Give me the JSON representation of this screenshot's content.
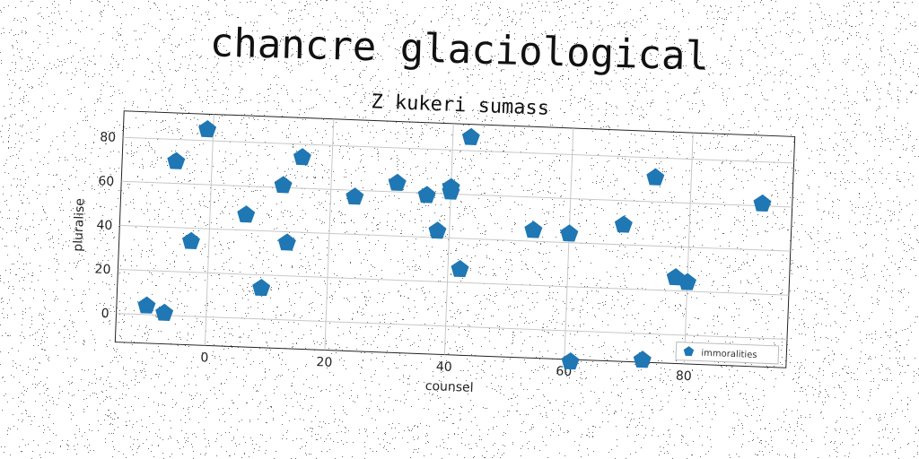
{
  "suptitle": "chancre glaciological",
  "chart_data": {
    "type": "scatter",
    "title": "Z kukeri sumass",
    "xlabel": "counsel",
    "ylabel": "pluralise",
    "xlim": [
      -15,
      97
    ],
    "ylim": [
      -13,
      92
    ],
    "xticks": [
      0,
      20,
      40,
      60,
      80
    ],
    "yticks": [
      0,
      20,
      40,
      60,
      80
    ],
    "grid": true,
    "legend_position": "lower-right",
    "marker": "pentagon",
    "series": [
      {
        "name": "immoralities",
        "color": "#1f77b4",
        "points": [
          {
            "x": -10,
            "y": 4
          },
          {
            "x": -7,
            "y": 1
          },
          {
            "x": -6,
            "y": 70
          },
          {
            "x": -3,
            "y": 34
          },
          {
            "x": -1,
            "y": 85
          },
          {
            "x": 6,
            "y": 47
          },
          {
            "x": 9,
            "y": 14
          },
          {
            "x": 12,
            "y": 61
          },
          {
            "x": 13,
            "y": 35
          },
          {
            "x": 15,
            "y": 74
          },
          {
            "x": 24,
            "y": 57
          },
          {
            "x": 31,
            "y": 64
          },
          {
            "x": 36,
            "y": 59
          },
          {
            "x": 38,
            "y": 43
          },
          {
            "x": 40,
            "y": 61
          },
          {
            "x": 40,
            "y": 63
          },
          {
            "x": 42,
            "y": 26
          },
          {
            "x": 43,
            "y": 86
          },
          {
            "x": 54,
            "y": 45
          },
          {
            "x": 60,
            "y": 44
          },
          {
            "x": 61,
            "y": -14
          },
          {
            "x": 69,
            "y": 49
          },
          {
            "x": 73,
            "y": -12
          },
          {
            "x": 74,
            "y": 71
          },
          {
            "x": 78,
            "y": 26
          },
          {
            "x": 80,
            "y": 24
          },
          {
            "x": 92,
            "y": 61
          }
        ]
      }
    ]
  }
}
